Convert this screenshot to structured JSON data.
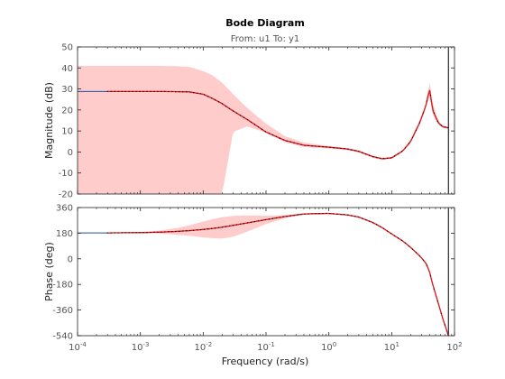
{
  "chart_data": {
    "type": "line",
    "title": "Bode Diagram",
    "subtitle": "From: u1  To: y1",
    "xlabel": "Frequency  (rad/s)",
    "x_scale": "log",
    "xlim": [
      0.0001,
      100
    ],
    "x_ticks": [
      0.0001,
      0.001,
      0.01,
      0.1,
      1,
      10,
      100
    ],
    "x_tick_labels": [
      {
        "base": "10",
        "exp": "-4"
      },
      {
        "base": "10",
        "exp": "-3"
      },
      {
        "base": "10",
        "exp": "-2"
      },
      {
        "base": "10",
        "exp": "-1"
      },
      {
        "base": "10",
        "exp": "0"
      },
      {
        "base": "10",
        "exp": "1"
      },
      {
        "base": "10",
        "exp": "2"
      }
    ],
    "vertical_marker_x": 80,
    "grid": false,
    "colors": {
      "band": "#ffcccc",
      "estimate_line": "#e41a1c",
      "model_line": "#1f4e9c",
      "dots": "#000000",
      "marker": "#000000",
      "axis": "#222222",
      "tick_label": "#555555"
    },
    "panels": [
      {
        "id": "magnitude",
        "ylabel": "Magnitude (dB)",
        "ylim": [
          -20,
          50
        ],
        "y_ticks": [
          -20,
          -10,
          0,
          10,
          20,
          30,
          40,
          50
        ],
        "x": [
          0.0001,
          0.0003,
          0.001,
          0.002,
          0.004,
          0.006,
          0.01,
          0.014,
          0.02,
          0.03,
          0.05,
          0.1,
          0.2,
          0.4,
          1,
          2,
          3,
          5,
          7,
          10,
          15,
          20,
          28,
          35,
          40,
          45,
          55,
          65,
          80
        ],
        "model": [
          28.8,
          28.8,
          28.8,
          28.8,
          28.7,
          28.6,
          27.5,
          25.5,
          23,
          19.5,
          15.5,
          9.5,
          5.5,
          3.2,
          2.3,
          1.4,
          0.3,
          -2.2,
          -3.2,
          -2.8,
          0.5,
          5,
          14,
          22,
          30,
          20,
          14,
          12,
          11.5
        ],
        "upper": [
          41,
          41,
          41,
          41,
          40.8,
          40.5,
          38.5,
          36.5,
          33,
          27.5,
          21,
          13.5,
          7.5,
          4.5,
          2.8,
          1.8,
          0.8,
          -1.8,
          -2.8,
          -2.3,
          1,
          5.8,
          15,
          23,
          34,
          23,
          15,
          12.5,
          12
        ],
        "lower": [
          -20,
          -20,
          -20,
          -20,
          -20,
          -20,
          -20,
          -20,
          -20,
          9.5,
          12.2,
          9.2,
          4.6,
          2.4,
          1.6,
          0.9,
          -0.2,
          -2.8,
          -3.8,
          -3.3,
          0,
          4.2,
          13,
          21,
          27.5,
          17.5,
          13,
          11.5,
          11
        ],
        "estimate_start": 0.0003,
        "model_start": 0.0001
      },
      {
        "id": "phase",
        "ylabel": "Phase (deg)",
        "ylim": [
          -540,
          360
        ],
        "y_ticks": [
          -540,
          -360,
          -180,
          0,
          180,
          360
        ],
        "x": [
          0.0001,
          0.0003,
          0.001,
          0.002,
          0.004,
          0.006,
          0.01,
          0.014,
          0.02,
          0.03,
          0.05,
          0.1,
          0.2,
          0.4,
          1,
          2,
          3,
          5,
          7,
          10,
          15,
          20,
          28,
          35,
          40,
          45,
          55,
          65,
          80
        ],
        "model": [
          182,
          182,
          184,
          187,
          193,
          198,
          206,
          213,
          222,
          235,
          252,
          275,
          297,
          315,
          319,
          308,
          293,
          255,
          220,
          175,
          125,
          80,
          20,
          -30,
          -90,
          -180,
          -310,
          -420,
          -540
        ],
        "upper": [
          182,
          182,
          188,
          198,
          218,
          235,
          262,
          278,
          292,
          302,
          305,
          303,
          307,
          318,
          322,
          311,
          296,
          258,
          223,
          178,
          128,
          83,
          24,
          -25,
          -82,
          -168,
          -300,
          -410,
          -530
        ],
        "lower": [
          182,
          182,
          180,
          178,
          168,
          162,
          150,
          145,
          142,
          155,
          190,
          244,
          285,
          310,
          316,
          305,
          290,
          252,
          217,
          172,
          122,
          77,
          16,
          -35,
          -98,
          -192,
          -320,
          -430,
          -540
        ],
        "estimate_start": 0.0003,
        "model_start": 0.0001
      }
    ]
  }
}
